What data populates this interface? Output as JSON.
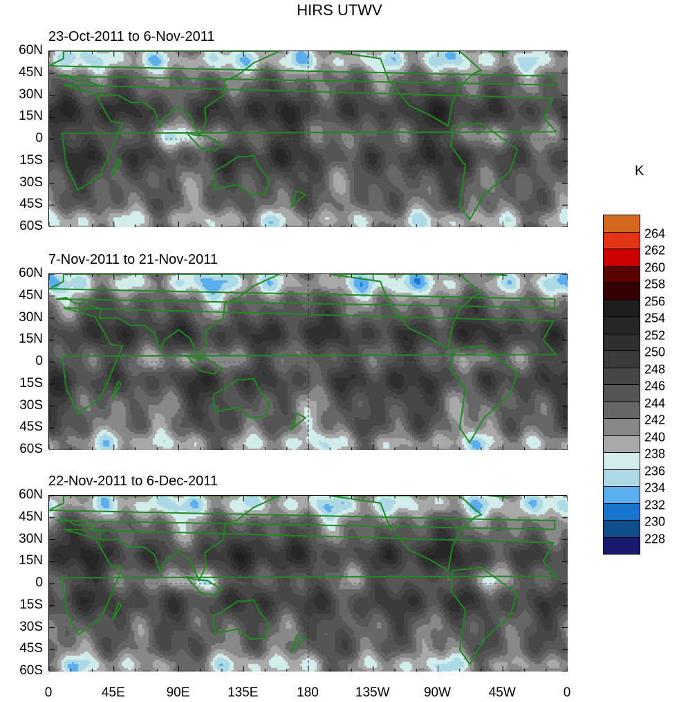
{
  "title": "HIRS UTWV",
  "unit": "K",
  "panels": [
    {
      "label": "23-Oct-2011 to 6-Nov-2011"
    },
    {
      "label": "7-Nov-2011 to 21-Nov-2011"
    },
    {
      "label": "22-Nov-2011 to 6-Dec-2011"
    }
  ],
  "lat_ticks": [
    "60N",
    "45N",
    "30N",
    "15N",
    "0",
    "15S",
    "30S",
    "45S",
    "60S"
  ],
  "lon_ticks": [
    "0",
    "45E",
    "90E",
    "135E",
    "180",
    "135W",
    "90W",
    "45W",
    "0"
  ],
  "colorbar": {
    "labels": [
      "264",
      "262",
      "260",
      "258",
      "256",
      "254",
      "252",
      "250",
      "248",
      "246",
      "244",
      "242",
      "240",
      "238",
      "236",
      "234",
      "232",
      "230",
      "228"
    ],
    "colors": [
      "#d2691e",
      "#e33514",
      "#cc0000",
      "#5a0000",
      "#340000",
      "#1e1e1e",
      "#262626",
      "#2f2f2f",
      "#3b3b3b",
      "#474747",
      "#555555",
      "#666666",
      "#878787",
      "#a8a8a8",
      "#d2ecec",
      "#add8e6",
      "#5aaeee",
      "#1874cd",
      "#104e8b",
      "#191970"
    ]
  },
  "coast_color": "#1f8a1f"
}
